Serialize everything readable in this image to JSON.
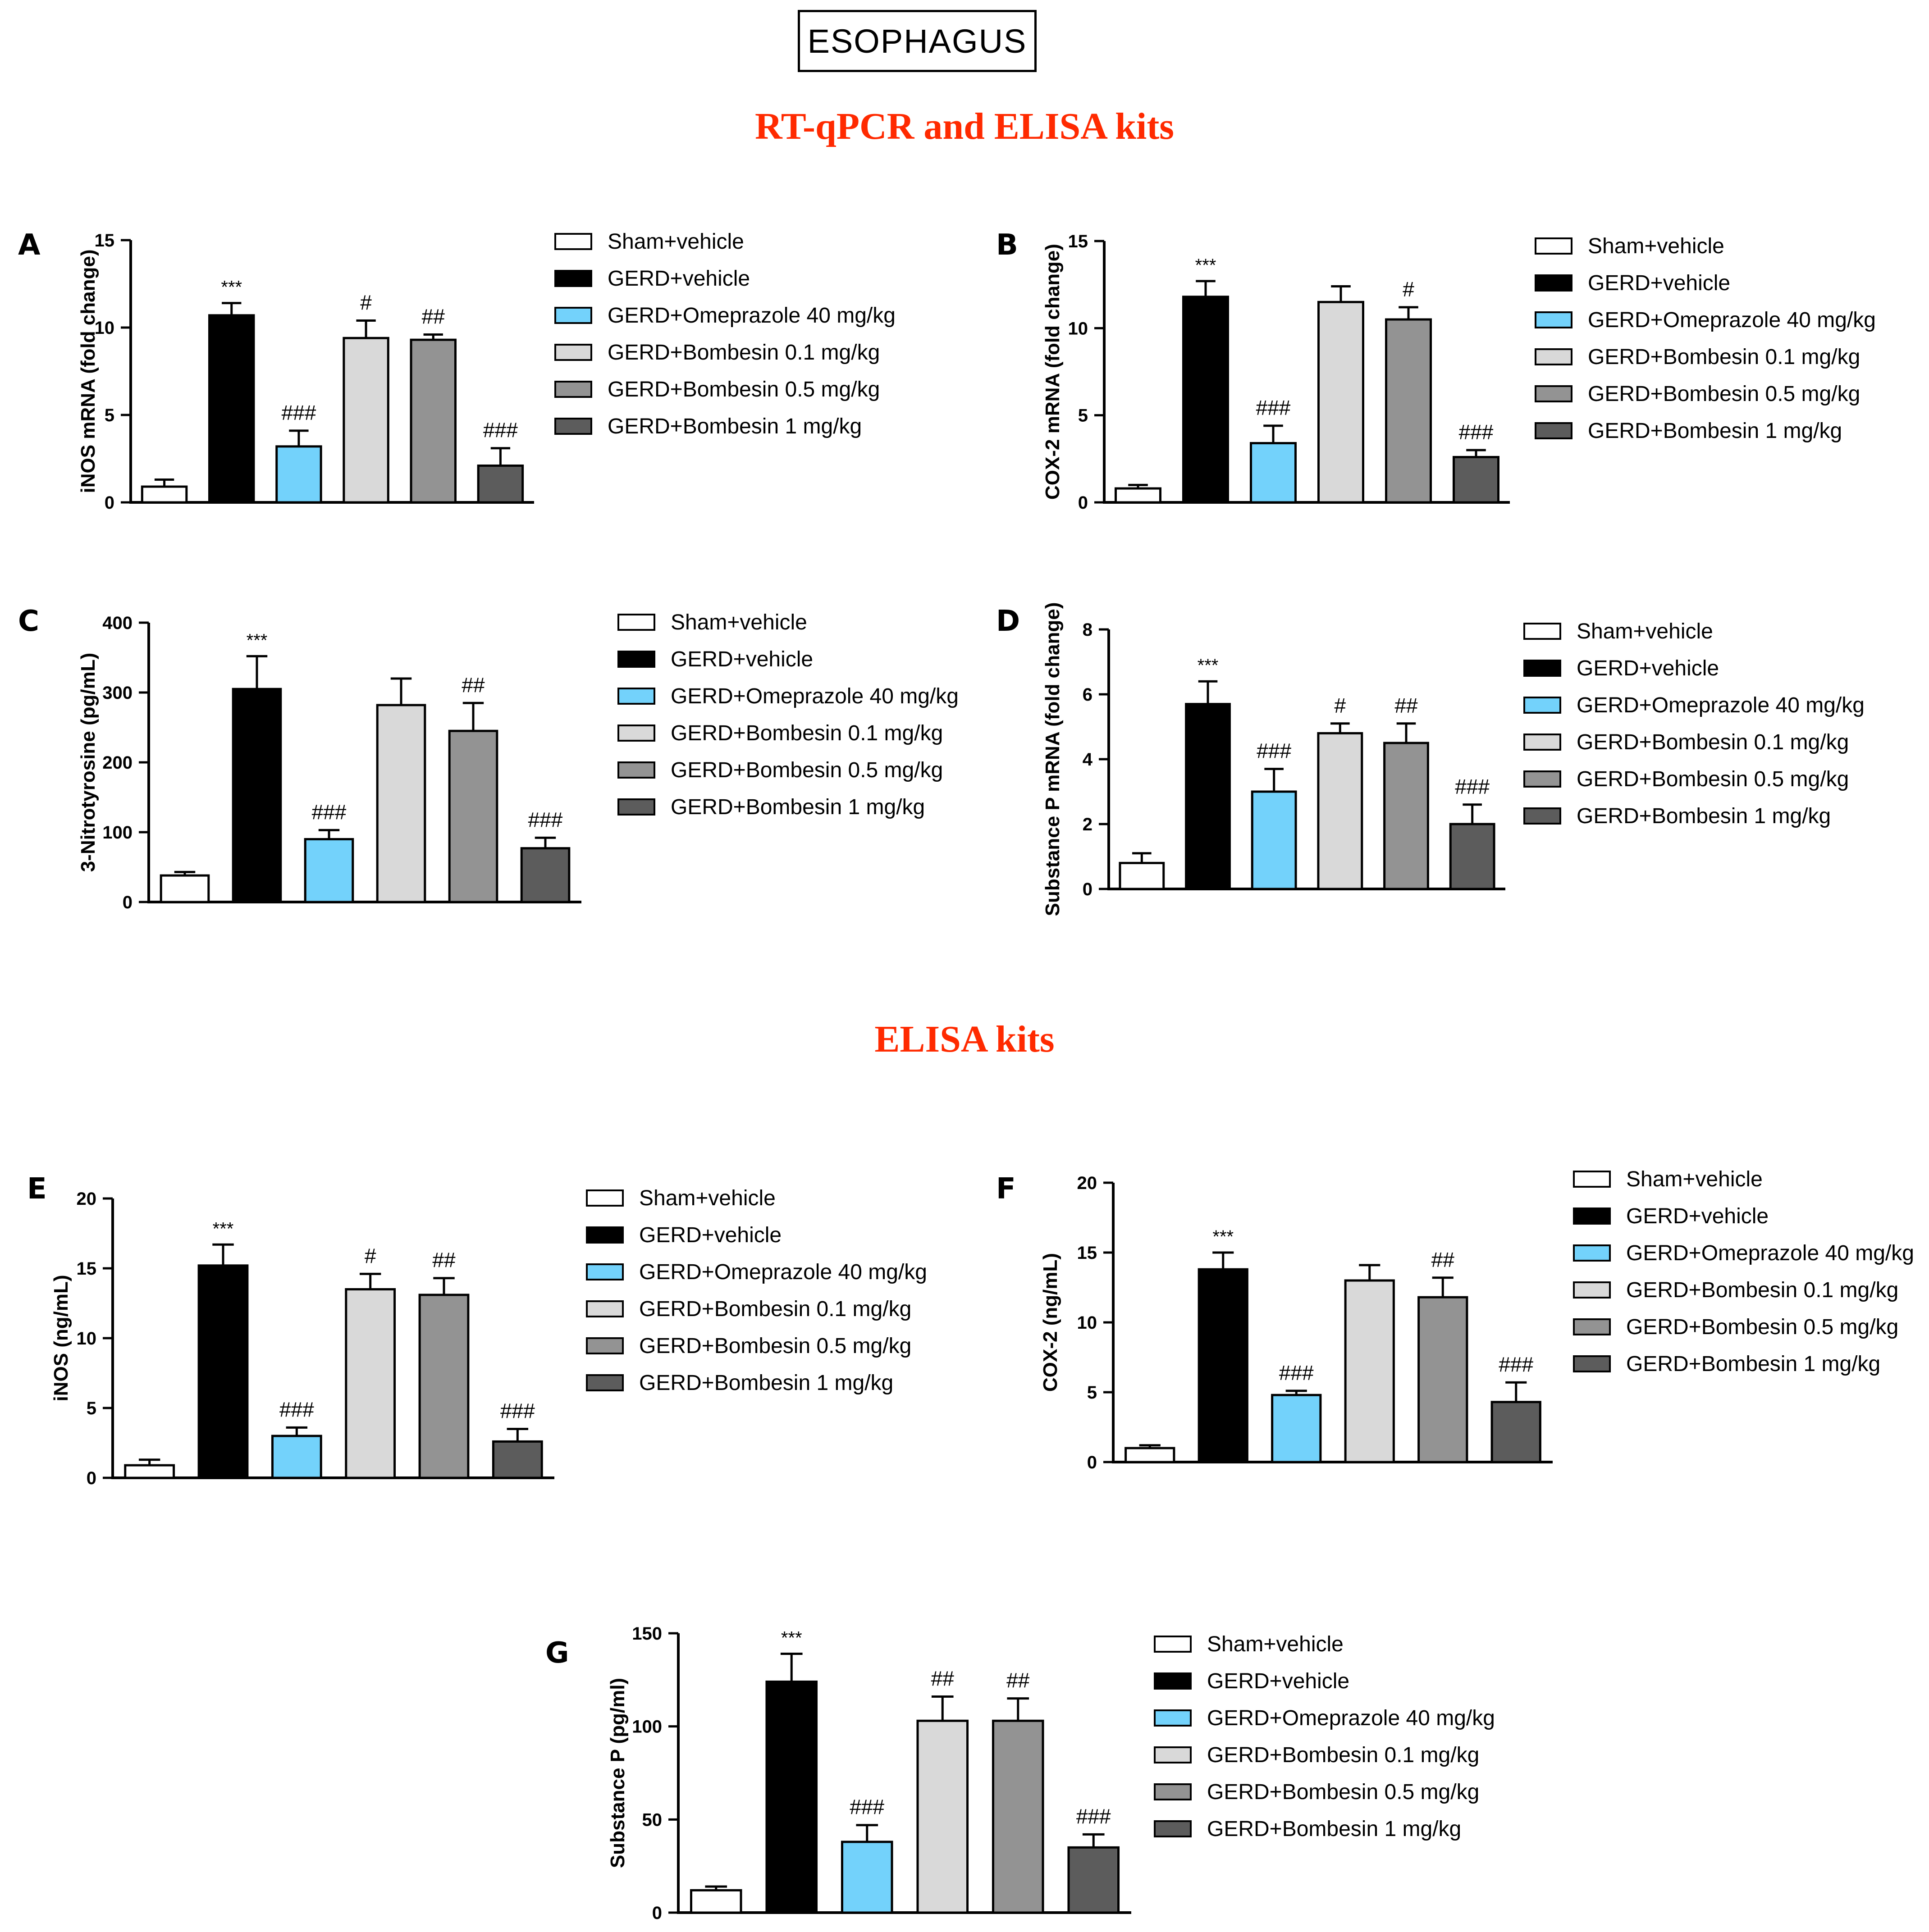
{
  "header": {
    "label": "ESOPHAGUS"
  },
  "sections": [
    {
      "title": "RT-qPCR and ELISA kits"
    },
    {
      "title": "ELISA kits"
    }
  ],
  "colors": {
    "sham": "#ffffff",
    "gerd": "#000000",
    "omeprazole": "#73d2fb",
    "bombesin_01": "#d9d9d9",
    "bombesin_05": "#939393",
    "bombesin_1": "#5c5c5c"
  },
  "legend": [
    {
      "label": "Sham+vehicle",
      "color": "#ffffff"
    },
    {
      "label": "GERD+vehicle",
      "color": "#000000"
    },
    {
      "label": "GERD+Omeprazole 40 mg/kg",
      "color": "#73d2fb"
    },
    {
      "label": "GERD+Bombesin 0.1 mg/kg",
      "color": "#d9d9d9"
    },
    {
      "label": "GERD+Bombesin 0.5 mg/kg",
      "color": "#939393"
    },
    {
      "label": "GERD+Bombesin 1 mg/kg",
      "color": "#5c5c5c"
    }
  ],
  "chart_data": [
    {
      "panel": "A",
      "type": "bar",
      "ylabel": "iNOS mRNA (fold change)",
      "ylim": [
        0,
        15
      ],
      "yticks": [
        0,
        5,
        10,
        15
      ],
      "categories": [
        "Sham+vehicle",
        "GERD+vehicle",
        "GERD+Omeprazole 40 mg/kg",
        "GERD+Bombesin 0.1 mg/kg",
        "GERD+Bombesin 0.5 mg/kg",
        "GERD+Bombesin 1 mg/kg"
      ],
      "values": [
        0.9,
        10.7,
        3.2,
        9.4,
        9.3,
        2.1
      ],
      "errors": [
        0.4,
        0.7,
        0.9,
        1.0,
        0.3,
        1.0
      ],
      "annotations": [
        "",
        "***",
        "###",
        "#",
        "##",
        "###"
      ]
    },
    {
      "panel": "B",
      "type": "bar",
      "ylabel": "COX-2 mRNA (fold change)",
      "ylim": [
        0,
        15
      ],
      "yticks": [
        0,
        5,
        10,
        15
      ],
      "categories": [
        "Sham+vehicle",
        "GERD+vehicle",
        "GERD+Omeprazole 40 mg/kg",
        "GERD+Bombesin 0.1 mg/kg",
        "GERD+Bombesin 0.5 mg/kg",
        "GERD+Bombesin 1 mg/kg"
      ],
      "values": [
        0.8,
        11.8,
        3.4,
        11.5,
        10.5,
        2.6
      ],
      "errors": [
        0.2,
        0.9,
        1.0,
        0.9,
        0.7,
        0.4
      ],
      "annotations": [
        "",
        "***",
        "###",
        "",
        "#",
        "###"
      ]
    },
    {
      "panel": "C",
      "type": "bar",
      "ylabel": "3-Nitrotyrosine (pg/mL)",
      "ylim": [
        0,
        400
      ],
      "yticks": [
        0,
        100,
        200,
        300,
        400
      ],
      "categories": [
        "Sham+vehicle",
        "GERD+vehicle",
        "GERD+Omeprazole 40 mg/kg",
        "GERD+Bombesin 0.1 mg/kg",
        "GERD+Bombesin 0.5 mg/kg",
        "GERD+Bombesin 1 mg/kg"
      ],
      "values": [
        38,
        305,
        90,
        282,
        245,
        77
      ],
      "errors": [
        5,
        47,
        13,
        38,
        40,
        15
      ],
      "annotations": [
        "",
        "***",
        "###",
        "",
        "##",
        "###"
      ]
    },
    {
      "panel": "D",
      "type": "bar",
      "ylabel": "Substance P mRNA (fold change)",
      "ylim": [
        0,
        8
      ],
      "yticks": [
        0,
        2,
        4,
        6,
        8
      ],
      "categories": [
        "Sham+vehicle",
        "GERD+vehicle",
        "GERD+Omeprazole 40 mg/kg",
        "GERD+Bombesin 0.1 mg/kg",
        "GERD+Bombesin 0.5 mg/kg",
        "GERD+Bombesin 1 mg/kg"
      ],
      "values": [
        0.8,
        5.7,
        3.0,
        4.8,
        4.5,
        2.0
      ],
      "errors": [
        0.3,
        0.7,
        0.7,
        0.3,
        0.6,
        0.6
      ],
      "annotations": [
        "",
        "***",
        "###",
        "#",
        "##",
        "###"
      ]
    },
    {
      "panel": "E",
      "type": "bar",
      "ylabel": "iNOS  (ng/mL)",
      "ylim": [
        0,
        20
      ],
      "yticks": [
        0,
        5,
        10,
        15,
        20
      ],
      "categories": [
        "Sham+vehicle",
        "GERD+vehicle",
        "GERD+Omeprazole 40 mg/kg",
        "GERD+Bombesin 0.1 mg/kg",
        "GERD+Bombesin 0.5 mg/kg",
        "GERD+Bombesin 1 mg/kg"
      ],
      "values": [
        0.9,
        15.2,
        3.0,
        13.5,
        13.1,
        2.6
      ],
      "errors": [
        0.4,
        1.5,
        0.6,
        1.1,
        1.2,
        0.9
      ],
      "annotations": [
        "",
        "***",
        "###",
        "#",
        "##",
        "###"
      ]
    },
    {
      "panel": "F",
      "type": "bar",
      "ylabel": "COX-2  (ng/mL)",
      "ylim": [
        0,
        20
      ],
      "yticks": [
        0,
        5,
        10,
        15,
        20
      ],
      "categories": [
        "Sham+vehicle",
        "GERD+vehicle",
        "GERD+Omeprazole 40 mg/kg",
        "GERD+Bombesin 0.1 mg/kg",
        "GERD+Bombesin 0.5 mg/kg",
        "GERD+Bombesin 1 mg/kg"
      ],
      "values": [
        1.0,
        13.8,
        4.8,
        13.0,
        11.8,
        4.3
      ],
      "errors": [
        0.2,
        1.2,
        0.3,
        1.1,
        1.4,
        1.4
      ],
      "annotations": [
        "",
        "***",
        "###",
        "",
        "##",
        "###"
      ]
    },
    {
      "panel": "G",
      "type": "bar",
      "ylabel": "Substance P  (pg/ml)",
      "ylim": [
        0,
        150
      ],
      "yticks": [
        0,
        50,
        100,
        150
      ],
      "categories": [
        "Sham+vehicle",
        "GERD+vehicle",
        "GERD+Omeprazole 40 mg/kg",
        "GERD+Bombesin 0.1 mg/kg",
        "GERD+Bombesin 0.5 mg/kg",
        "GERD+Bombesin 1 mg/kg"
      ],
      "values": [
        12,
        124,
        38,
        103,
        103,
        35
      ],
      "errors": [
        2,
        15,
        9,
        13,
        12,
        7
      ],
      "annotations": [
        "",
        "***",
        "###",
        "##",
        "##",
        "###"
      ]
    }
  ]
}
